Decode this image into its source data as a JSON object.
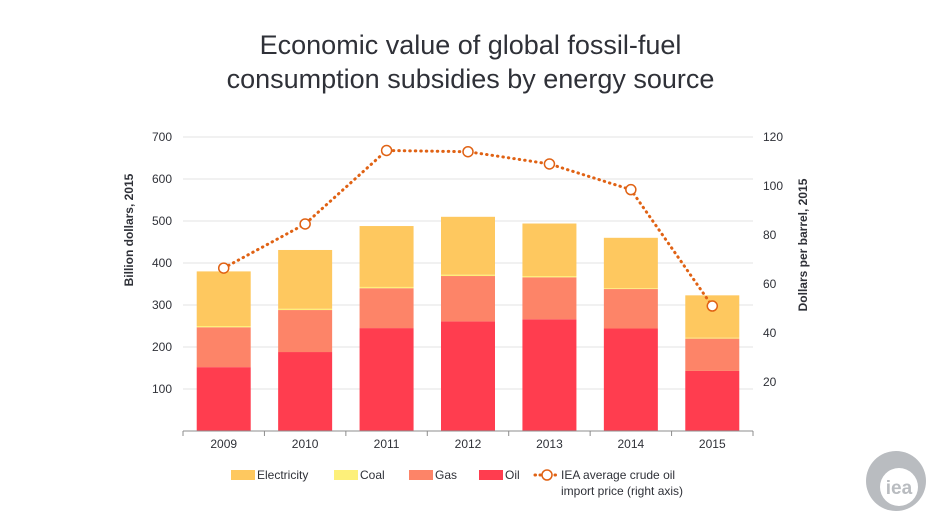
{
  "chart_data": {
    "type": "bar",
    "title": [
      "Economic value of global fossil-fuel",
      "consumption subsidies by energy source"
    ],
    "categories": [
      "2009",
      "2010",
      "2011",
      "2012",
      "2013",
      "2014",
      "2015"
    ],
    "stacked": true,
    "ylabel": "Billion dollars, 2015",
    "ylim": [
      0,
      700
    ],
    "yticks": [
      "100",
      "200",
      "300",
      "400",
      "500",
      "600",
      "700"
    ],
    "y2label": "Dollars per barrel, 2015",
    "y2lim": [
      0,
      120
    ],
    "y2ticks": [
      "20",
      "40",
      "60",
      "80",
      "100",
      "120"
    ],
    "grid": true,
    "legend_position": "bottom",
    "series": [
      {
        "name": "Oil",
        "type": "bar",
        "color": "#ff3d4f",
        "values": [
          152,
          188,
          245,
          261,
          266,
          244,
          143
        ]
      },
      {
        "name": "Gas",
        "type": "bar",
        "color": "#fd8468",
        "values": [
          95,
          100,
          95,
          108,
          100,
          94,
          77
        ]
      },
      {
        "name": "Coal",
        "type": "bar",
        "color": "#fdf07a",
        "values": [
          3,
          3,
          3,
          3,
          3,
          2,
          2
        ]
      },
      {
        "name": "Electricity",
        "type": "bar",
        "color": "#fec85f",
        "values": [
          130,
          140,
          145,
          138,
          125,
          120,
          101
        ]
      },
      {
        "name": "IEA average crude oil import price (right axis)",
        "type": "line",
        "axis": "right",
        "color": "#e06214",
        "values": [
          66.5,
          84.5,
          114.5,
          114,
          109,
          98.5,
          51
        ]
      }
    ],
    "legend": [
      {
        "label": "Electricity",
        "series": "Electricity"
      },
      {
        "label": "Coal",
        "series": "Coal"
      },
      {
        "label": "Gas",
        "series": "Gas"
      },
      {
        "label": "Oil",
        "series": "Oil"
      },
      {
        "label": [
          "IEA average crude oil",
          "import price (right axis)"
        ],
        "series": "IEA average crude oil import price (right axis)"
      }
    ]
  },
  "logo": {
    "text": "iea",
    "color": "#b9bcc0"
  }
}
